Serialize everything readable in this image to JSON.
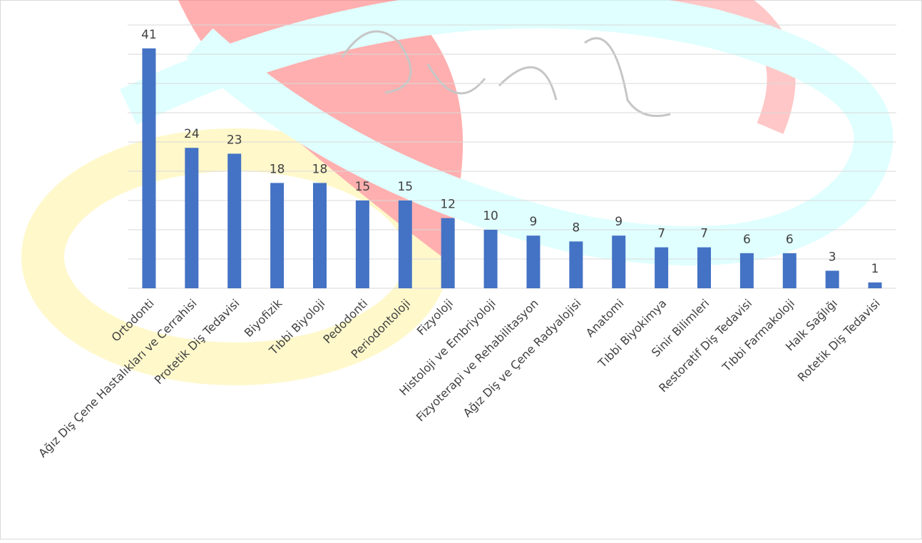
{
  "chart_data": {
    "type": "bar",
    "categories": [
      "Ortodonti",
      "Ağız Diş Çene Hastalıkları ve Cerrahisi",
      "Protetik Diş Tedavisi",
      "Biyofizik",
      "Tıbbi Biyoloji",
      "Pedodonti",
      "Periodontoloji",
      "Fizyoloji",
      "Histoloji ve Embriyoloji",
      "Fizyoterapi ve Rehabilitasyon",
      "Ağız Diş ve Çene Radyalojisi",
      "Anatomi",
      "Tıbbi Biyokimya",
      "Sinir Bilimleri",
      "Restoratif Diş Tedavisi",
      "Tıbbi Farmakoloji",
      "Halk Sağlığı",
      "Rotetik Diş Tedavisi"
    ],
    "values": [
      41,
      24,
      23,
      18,
      18,
      15,
      15,
      12,
      10,
      9,
      8,
      9,
      7,
      7,
      6,
      6,
      3,
      1
    ],
    "color": "#4472c4",
    "ylim": [
      0,
      45
    ],
    "yticks": [
      0,
      5,
      10,
      15,
      20,
      25,
      30,
      35,
      40,
      45
    ],
    "grid": true
  }
}
